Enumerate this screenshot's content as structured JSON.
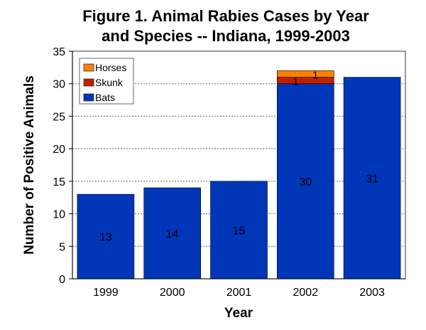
{
  "chart_data": {
    "type": "bar",
    "stacked": true,
    "title": "Figure 1. Animal Rabies Cases by Year and Species -- Indiana, 1999-2003",
    "title_lines": [
      "Figure 1. Animal Rabies Cases by Year",
      "and Species -- Indiana, 1999-2003"
    ],
    "xlabel": "Year",
    "ylabel": "Number of Positive Animals",
    "ylim": [
      0,
      35
    ],
    "yticks": [
      0,
      5,
      10,
      15,
      20,
      25,
      30,
      35
    ],
    "categories": [
      "1999",
      "2000",
      "2001",
      "2002",
      "2003"
    ],
    "series": [
      {
        "name": "Bats",
        "color": "#0036B8",
        "values": [
          13,
          14,
          15,
          30,
          31
        ],
        "labels": [
          "13",
          "14",
          "15",
          "30",
          "31"
        ]
      },
      {
        "name": "Skunk",
        "color": "#C02000",
        "values": [
          0,
          0,
          0,
          1,
          0
        ],
        "labels": [
          "",
          "",
          "",
          "1",
          ""
        ]
      },
      {
        "name": "Horses",
        "color": "#FF8000",
        "values": [
          0,
          0,
          0,
          1,
          0
        ],
        "labels": [
          "",
          "",
          "",
          "1",
          ""
        ]
      }
    ],
    "legend": {
      "placement": "top-left",
      "order": [
        "Horses",
        "Skunk",
        "Bats"
      ]
    },
    "grid": {
      "y": true,
      "style": "dotted"
    }
  }
}
